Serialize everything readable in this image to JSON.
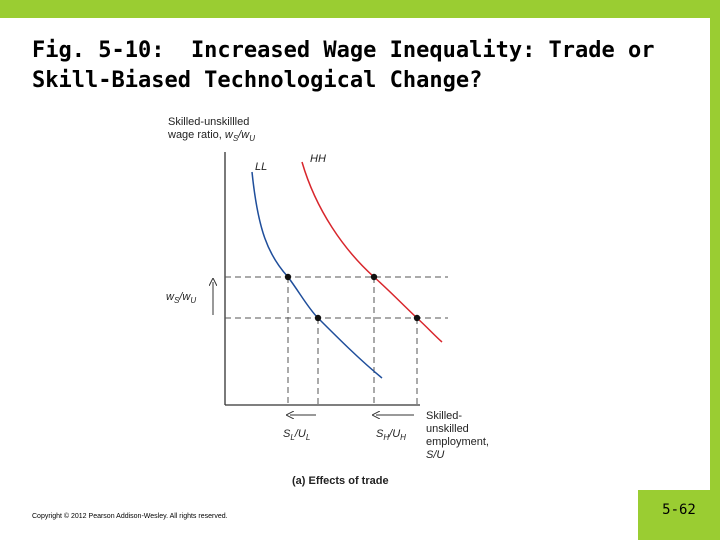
{
  "title": {
    "line1": "Fig. 5-10:  Increased Wage Inequality: Trade or",
    "line2": "Skill-Biased Technological Change?"
  },
  "figure": {
    "y_axis_label_line1": "Skilled-unskillled",
    "y_axis_label_line2_prefix": "wage ratio, ",
    "y_axis_symbol_ws_w": "w",
    "y_axis_symbol_ws_s": "S",
    "y_axis_symbol_slash": "/",
    "y_axis_symbol_wu_w": "w",
    "y_axis_symbol_wu_u": "U",
    "curve_ll_label": "LL",
    "curve_hh_label": "HH",
    "y_marker_w1": "w",
    "y_marker_s": "S",
    "y_marker_slash": "/",
    "y_marker_w2": "w",
    "y_marker_u": "U",
    "x_axis_label_line1": "Skilled-",
    "x_axis_label_line2": "unskilled",
    "x_axis_label_line3": "employment,",
    "x_axis_label_line4": "S/U",
    "x_tick_left_s": "S",
    "x_tick_left_s_sub": "L",
    "x_tick_left_slash": "/",
    "x_tick_left_u": "U",
    "x_tick_left_u_sub": "L",
    "x_tick_right_s": "S",
    "x_tick_right_s_sub": "H",
    "x_tick_right_slash": "/",
    "x_tick_right_u": "U",
    "x_tick_right_u_sub": "H",
    "caption": "(a) Effects of trade",
    "colors": {
      "ll_curve": "#1f4e9b",
      "hh_curve": "#d8262c",
      "dashed": "#555555",
      "axis": "#333333"
    }
  },
  "footer": {
    "copyright": "Copyright © 2012 Pearson Addison-Wesley. All rights reserved.",
    "page_number": "5-62"
  },
  "accent_color": "#9acd32"
}
